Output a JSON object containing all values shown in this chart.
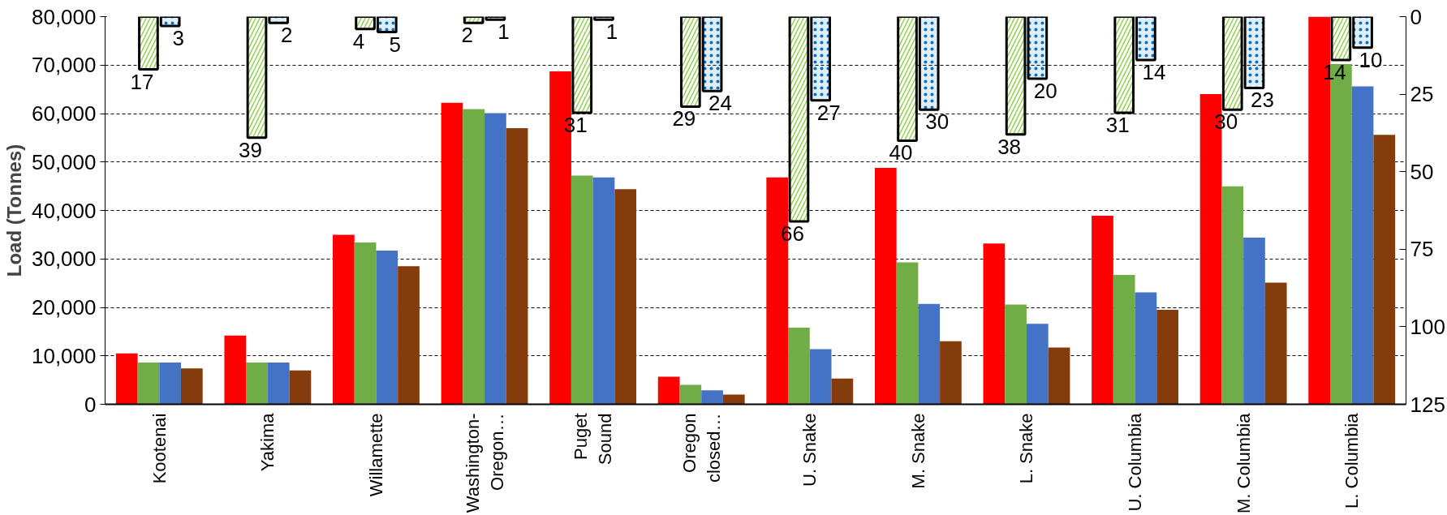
{
  "chart_data": {
    "type": "bar",
    "ylabel": "Load (Tonnes)",
    "categories": [
      "Kootenai",
      "Yakima",
      "Willamette",
      "Washington-\nOregon…",
      "Puget\nSound",
      "Oregon\nclosed…",
      "U. Snake",
      "M. Snake",
      "L. Snake",
      "U. Columbia",
      "M. Columbia",
      "L. Columbia"
    ],
    "series": [
      {
        "color": "#ff0000",
        "values": [
          10500,
          14200,
          35000,
          62200,
          68700,
          5700,
          46800,
          48800,
          33200,
          38900,
          64000,
          80000
        ]
      },
      {
        "color": "#70ad47",
        "values": [
          8600,
          8600,
          33400,
          60900,
          47200,
          4000,
          15800,
          29300,
          20600,
          26700,
          45000,
          70200
        ]
      },
      {
        "color": "#4472c4",
        "values": [
          8600,
          8600,
          31700,
          60100,
          46800,
          2900,
          11400,
          20700,
          16600,
          23100,
          34400,
          65600
        ]
      },
      {
        "color": "#843c0c",
        "values": [
          7400,
          7000,
          28500,
          57000,
          44400,
          2000,
          5300,
          13000,
          11700,
          19500,
          25100,
          55600
        ]
      },
      {
        "color": "#92d050",
        "axis": "y2",
        "values": [
          17,
          39,
          4,
          2,
          31,
          29,
          66,
          40,
          38,
          31,
          30,
          14
        ],
        "value_labels": [
          "17",
          "39",
          "4",
          "2",
          "31",
          "29",
          "66",
          "40",
          "38",
          "31",
          "30",
          "14"
        ]
      },
      {
        "color": "#0070c0",
        "axis": "y2",
        "values": [
          3,
          2,
          5,
          1,
          1,
          24,
          27,
          30,
          20,
          14,
          23,
          10
        ],
        "value_labels": [
          "3",
          "2",
          "5",
          "1",
          "1",
          "24",
          "27",
          "30",
          "20",
          "14",
          "23",
          "10"
        ]
      }
    ],
    "ylim": [
      0,
      80000
    ],
    "yticks": [
      0,
      {
        "value": 10000,
        "label": "10,000"
      },
      {
        "value": 20000,
        "label": "20,000"
      },
      {
        "value": 30000,
        "label": "30,000"
      },
      {
        "value": 40000,
        "label": "40,000"
      },
      {
        "value": 50000,
        "label": "50,000"
      },
      {
        "value": 60000,
        "label": "60,000"
      },
      {
        "value": 70000,
        "label": "70,000"
      },
      {
        "value": 80000,
        "label": "80,000"
      }
    ],
    "y2lim": [
      125,
      0
    ],
    "y2ticks": [
      0,
      25,
      50,
      75,
      100,
      125
    ],
    "grid": "y"
  }
}
